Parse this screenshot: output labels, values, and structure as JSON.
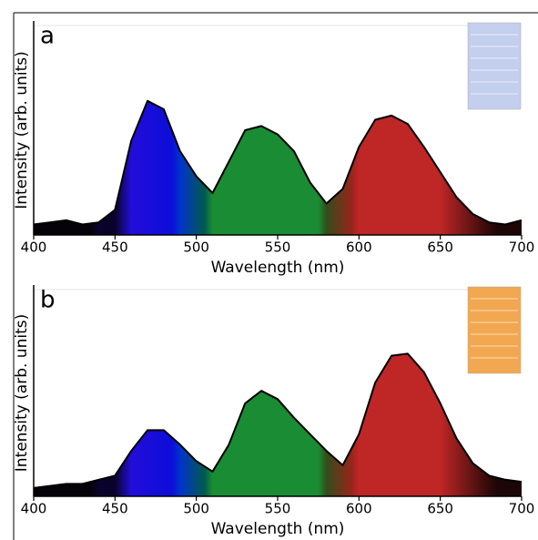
{
  "chart_data": [
    {
      "type": "area",
      "annotation": "a",
      "xlabel": "Wavelength (nm)",
      "ylabel": "Intensity (arb. units)",
      "color": "#000000",
      "x": [
        400,
        410,
        420,
        430,
        440,
        450,
        460,
        470,
        480,
        490,
        500,
        510,
        520,
        530,
        540,
        550,
        560,
        570,
        580,
        590,
        600,
        610,
        620,
        630,
        640,
        650,
        660,
        670,
        680,
        690,
        700
      ],
      "values": [
        0.05,
        0.06,
        0.07,
        0.05,
        0.06,
        0.12,
        0.45,
        0.64,
        0.6,
        0.4,
        0.28,
        0.2,
        0.35,
        0.5,
        0.52,
        0.48,
        0.4,
        0.25,
        0.15,
        0.22,
        0.42,
        0.55,
        0.57,
        0.53,
        0.42,
        0.3,
        0.18,
        0.1,
        0.06,
        0.05,
        0.07
      ],
      "xlim": [
        400,
        700
      ],
      "xticks": [
        400,
        450,
        500,
        550,
        600,
        650,
        700
      ],
      "ylim": [
        0,
        1
      ]
    },
    {
      "type": "area",
      "annotation": "b",
      "xlabel": "Wavelength (nm)",
      "ylabel": "Intensity (arb. units)",
      "color": "#000000",
      "x": [
        400,
        410,
        420,
        430,
        440,
        450,
        460,
        470,
        480,
        490,
        500,
        510,
        520,
        530,
        540,
        550,
        560,
        570,
        580,
        590,
        600,
        610,
        620,
        630,
        640,
        650,
        660,
        670,
        680,
        690,
        700
      ],
      "values": [
        0.04,
        0.05,
        0.06,
        0.06,
        0.08,
        0.1,
        0.22,
        0.32,
        0.32,
        0.25,
        0.17,
        0.12,
        0.25,
        0.45,
        0.51,
        0.47,
        0.38,
        0.3,
        0.22,
        0.15,
        0.3,
        0.55,
        0.68,
        0.69,
        0.6,
        0.45,
        0.28,
        0.16,
        0.1,
        0.08,
        0.07
      ],
      "xlim": [
        400,
        700
      ],
      "xticks": [
        400,
        450,
        500,
        550,
        600,
        650,
        700
      ],
      "ylim": [
        0,
        1
      ]
    }
  ]
}
